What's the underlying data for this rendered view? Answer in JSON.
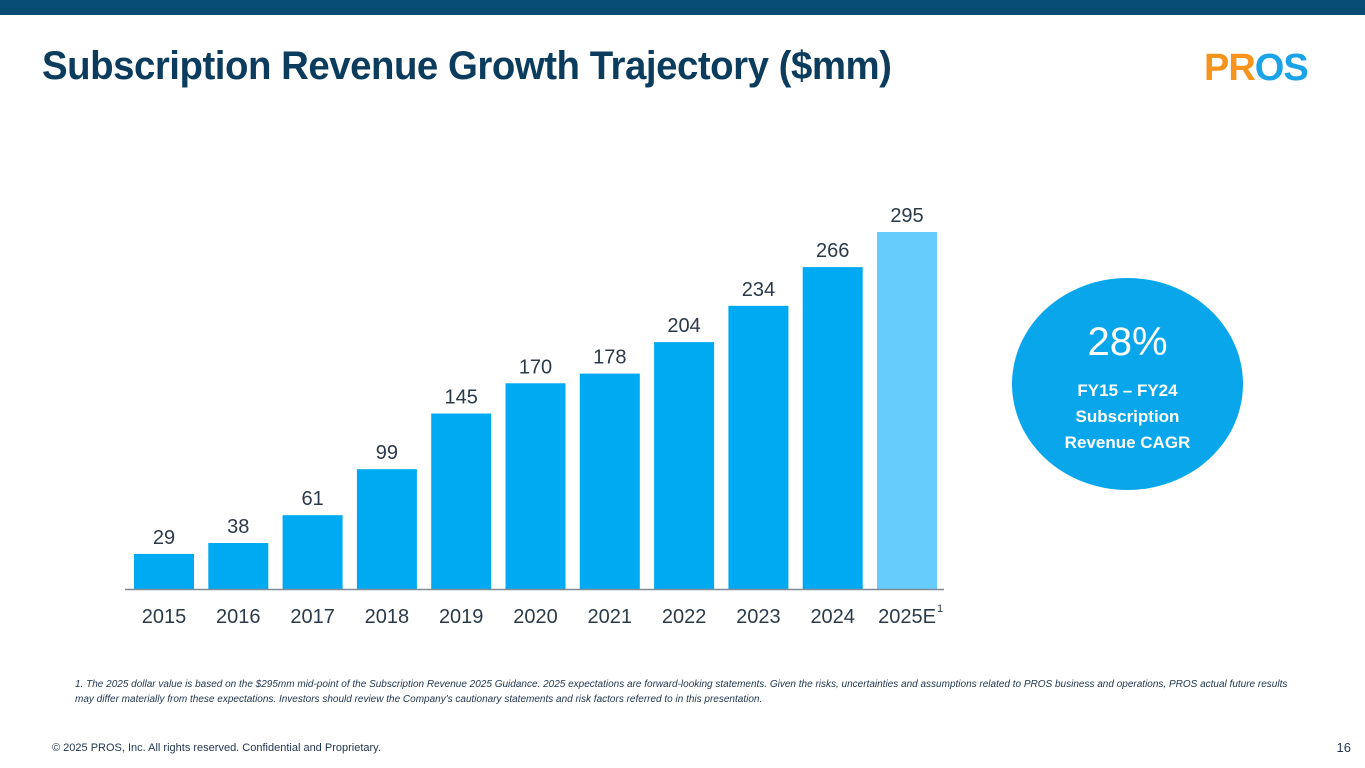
{
  "slide": {
    "title": "Subscription Revenue Growth Trajectory ($mm)",
    "logo_part1": "PR",
    "logo_part2": "OS",
    "page_number": "16",
    "copyright": "© 2025 PROS, Inc. All rights reserved. Confidential and Proprietary.",
    "footnote": "1. The 2025 dollar value is based on the $295mm mid-point of the Subscription Revenue 2025 Guidance. 2025 expectations are forward-looking statements. Given the risks, uncertainties and assumptions related to PROS business and operations, PROS actual future results may differ materially from these expectations. Investors should review the Company's cautionary statements and risk factors referred to in this presentation."
  },
  "callout": {
    "value": "28%",
    "label_line1": "FY15 – FY24",
    "label_line2": "Subscription",
    "label_line3": "Revenue CAGR",
    "color": "#0aa6ec"
  },
  "colors": {
    "bar": "#00aaf2",
    "bar_estimate": "#66ccfb",
    "title": "#0b3c5d",
    "top_bar": "#074c73"
  },
  "chart_data": {
    "type": "bar",
    "title": "Subscription Revenue Growth Trajectory ($mm)",
    "categories": [
      "2015",
      "2016",
      "2017",
      "2018",
      "2019",
      "2020",
      "2021",
      "2022",
      "2023",
      "2024",
      "2025E"
    ],
    "values": [
      29,
      38,
      61,
      99,
      145,
      170,
      178,
      204,
      234,
      266,
      295
    ],
    "data_labels": [
      "29",
      "38",
      "61",
      "99",
      "145",
      "170",
      "178",
      "204",
      "234",
      "266",
      "295"
    ],
    "estimate_flags": [
      false,
      false,
      false,
      false,
      false,
      false,
      false,
      false,
      false,
      false,
      true
    ],
    "category_superscripts": [
      "",
      "",
      "",
      "",
      "",
      "",
      "",
      "",
      "",
      "",
      "1"
    ],
    "xlabel": "",
    "ylabel": "",
    "ylim": [
      0,
      295
    ],
    "grid": false,
    "legend": "none"
  }
}
